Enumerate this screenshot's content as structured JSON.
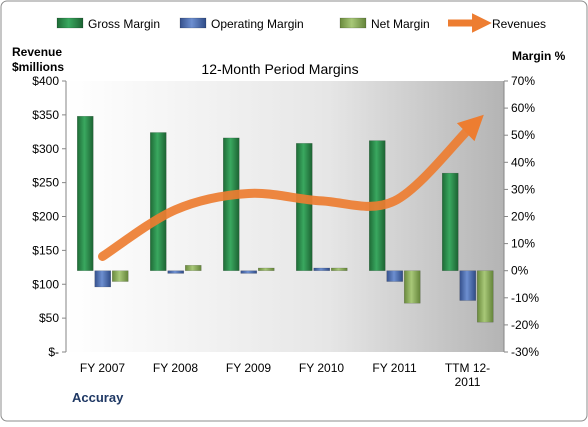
{
  "chart_data": {
    "type": "bar",
    "title": "12-Month Period Margins",
    "left_axis_title_line1": "Revenue",
    "left_axis_title_line2": "$millions",
    "right_axis_title": "Margin %",
    "company_label": "Accuray",
    "categories": [
      "FY 2007",
      "FY 2008",
      "FY 2009",
      "FY 2010",
      "FY 2011",
      "TTM 12-2011"
    ],
    "category_label_lines": [
      [
        "FY 2007"
      ],
      [
        "FY 2008"
      ],
      [
        "FY 2009"
      ],
      [
        "FY 2010"
      ],
      [
        "FY 2011"
      ],
      [
        "TTM 12-",
        "2011"
      ]
    ],
    "left_axis": {
      "min": 0,
      "max": 400,
      "step": 50,
      "tick_labels": [
        "$-",
        "$50",
        "$100",
        "$150",
        "$200",
        "$250",
        "$300",
        "$350",
        "$400"
      ]
    },
    "right_axis": {
      "min": -30,
      "max": 70,
      "step": 10,
      "tick_labels": [
        "-30%",
        "-20%",
        "-10%",
        "0%",
        "10%",
        "20%",
        "30%",
        "40%",
        "50%",
        "60%",
        "70%"
      ]
    },
    "series": [
      {
        "name": "Gross Margin",
        "kind": "bar",
        "axis": "right",
        "color": "#2E8B4E",
        "values": [
          57,
          51,
          49,
          47,
          48,
          36
        ]
      },
      {
        "name": "Operating Margin",
        "kind": "bar",
        "axis": "right",
        "color": "#4F72B8",
        "values": [
          -6,
          -1,
          -1,
          1,
          -4,
          -11
        ]
      },
      {
        "name": "Net Margin",
        "kind": "bar",
        "axis": "right",
        "color": "#8FB35A",
        "values": [
          -4,
          2,
          1,
          1,
          -12,
          -19
        ]
      },
      {
        "name": "Revenues",
        "kind": "line",
        "axis": "left",
        "color": "#ED7D31",
        "values": [
          141,
          210,
          234,
          223,
          223,
          327
        ]
      }
    ],
    "grid": false,
    "legend_position": "top"
  }
}
